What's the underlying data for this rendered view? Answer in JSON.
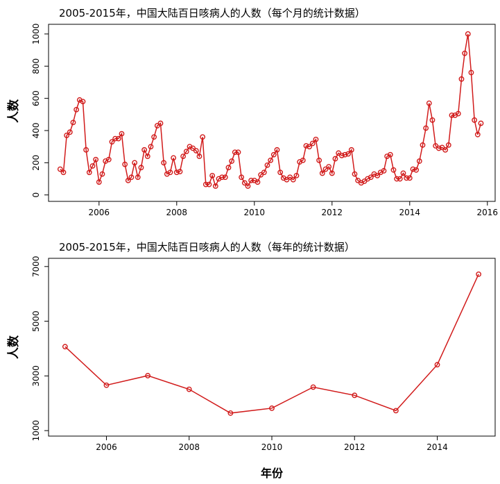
{
  "chart_data": [
    {
      "type": "line",
      "title": "2005-2015年，中国大陆百日咳病人的人数（每个月的统计数据）",
      "xlabel": "",
      "ylabel": "人数",
      "x_start": 2005.0,
      "x_step": 0.0833333,
      "xlim": [
        2004.7,
        2016.2
      ],
      "ylim": [
        -40,
        1060
      ],
      "x_ticks": [
        2006,
        2008,
        2010,
        2012,
        2014,
        2016
      ],
      "x_tick_labels": [
        "2006",
        "2008",
        "2010",
        "2012",
        "2014",
        "2016"
      ],
      "y_ticks": [
        0,
        200,
        400,
        600,
        800,
        1000
      ],
      "y_tick_labels": [
        "0",
        "200",
        "400",
        "600",
        "800",
        "1000"
      ],
      "grid": false,
      "markers": "open-circle",
      "color": "#d11a1a",
      "series": [
        {
          "values": [
            160,
            140,
            370,
            390,
            450,
            530,
            590,
            580,
            280,
            140,
            180,
            220,
            80,
            130,
            210,
            220,
            330,
            350,
            350,
            380,
            190,
            90,
            110,
            200,
            110,
            170,
            280,
            240,
            300,
            360,
            430,
            445,
            200,
            130,
            140,
            230,
            140,
            145,
            240,
            270,
            300,
            290,
            275,
            240,
            360,
            65,
            65,
            120,
            55,
            100,
            110,
            110,
            170,
            210,
            265,
            265,
            110,
            75,
            55,
            90,
            90,
            80,
            125,
            140,
            185,
            215,
            250,
            280,
            140,
            105,
            95,
            110,
            95,
            120,
            205,
            215,
            305,
            300,
            320,
            345,
            215,
            135,
            160,
            175,
            135,
            225,
            260,
            245,
            250,
            255,
            280,
            130,
            90,
            75,
            85,
            100,
            110,
            130,
            120,
            140,
            150,
            240,
            250,
            155,
            100,
            100,
            135,
            105,
            105,
            160,
            155,
            210,
            310,
            415,
            570,
            465,
            305,
            290,
            295,
            280,
            310,
            495,
            495,
            505,
            720,
            880,
            1000,
            760,
            465,
            375,
            445
          ]
        }
      ]
    },
    {
      "type": "line",
      "title": "2005-2015年，中国大陆百日咳病人的人数（每年的统计数据）",
      "xlabel": "年份",
      "ylabel": "人数",
      "x": [
        2005,
        2006,
        2007,
        2008,
        2009,
        2010,
        2011,
        2012,
        2013,
        2014,
        2015
      ],
      "xlim": [
        2004.6,
        2015.4
      ],
      "ylim": [
        800,
        7300
      ],
      "x_ticks": [
        2006,
        2008,
        2010,
        2012,
        2014
      ],
      "x_tick_labels": [
        "2006",
        "2008",
        "2010",
        "2012",
        "2014"
      ],
      "y_ticks": [
        1000,
        3000,
        5000,
        7000
      ],
      "y_tick_labels": [
        "1000",
        "3000",
        "5000",
        "7000"
      ],
      "grid": false,
      "markers": "open-circle",
      "color": "#d11a1a",
      "series": [
        {
          "values": [
            4070,
            2660,
            3010,
            2510,
            1640,
            1820,
            2590,
            2290,
            1730,
            3410,
            6720
          ]
        }
      ]
    }
  ]
}
